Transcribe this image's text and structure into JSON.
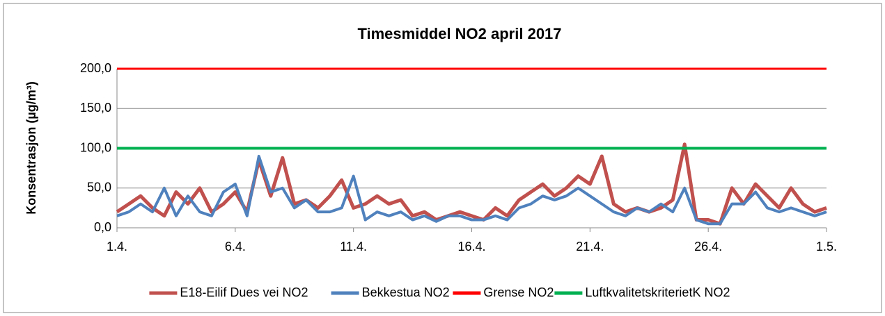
{
  "chart_data": {
    "type": "line",
    "title": "Timesmiddel NO2 april 2017",
    "y_label": "Konsentrasjon (µg/m³)",
    "xlim": [
      1,
      31
    ],
    "xticks": [
      {
        "value": 1,
        "label": "1.4."
      },
      {
        "value": 6,
        "label": "6.4."
      },
      {
        "value": 11,
        "label": "11.4."
      },
      {
        "value": 16,
        "label": "16.4."
      },
      {
        "value": 21,
        "label": "21.4."
      },
      {
        "value": 26,
        "label": "26.4."
      },
      {
        "value": 31,
        "label": "1.5."
      }
    ],
    "ylim": [
      0,
      200
    ],
    "yticks": [
      {
        "value": 0,
        "label": "0,0"
      },
      {
        "value": 50,
        "label": "50,0"
      },
      {
        "value": 100,
        "label": "100,0"
      },
      {
        "value": 150,
        "label": "150,0"
      },
      {
        "value": 200,
        "label": "200,0"
      }
    ],
    "grid": true,
    "legend": "bottom",
    "x": [
      1,
      1.5,
      2,
      2.5,
      3,
      3.5,
      4,
      4.5,
      5,
      5.5,
      6,
      6.5,
      7,
      7.5,
      8,
      8.5,
      9,
      9.5,
      10,
      10.5,
      11,
      11.5,
      12,
      12.5,
      13,
      13.5,
      14,
      14.5,
      15,
      15.5,
      16,
      16.5,
      17,
      17.5,
      18,
      18.5,
      19,
      19.5,
      20,
      20.5,
      21,
      21.5,
      22,
      22.5,
      23,
      23.5,
      24,
      24.5,
      25,
      25.5,
      26,
      26.5,
      27,
      27.5,
      28,
      28.5,
      29,
      29.5,
      30,
      30.5,
      31
    ],
    "series": [
      {
        "name": "E18-Eilif Dues vei NO2",
        "color": "#c0504d",
        "width": 5,
        "values": [
          20,
          30,
          40,
          25,
          15,
          45,
          30,
          50,
          20,
          30,
          45,
          20,
          85,
          40,
          88,
          30,
          35,
          25,
          40,
          60,
          25,
          30,
          40,
          30,
          35,
          15,
          20,
          10,
          15,
          20,
          15,
          10,
          25,
          15,
          35,
          45,
          55,
          40,
          50,
          65,
          55,
          90,
          30,
          20,
          25,
          20,
          25,
          35,
          105,
          10,
          10,
          5,
          50,
          30,
          55,
          40,
          25,
          50,
          30,
          20,
          25
        ]
      },
      {
        "name": "Bekkestua NO2",
        "color": "#4f81bd",
        "width": 4,
        "values": [
          15,
          20,
          30,
          20,
          50,
          15,
          40,
          20,
          15,
          45,
          55,
          15,
          90,
          45,
          50,
          25,
          35,
          20,
          20,
          25,
          65,
          10,
          20,
          15,
          20,
          10,
          15,
          8,
          15,
          15,
          10,
          10,
          15,
          10,
          25,
          30,
          40,
          35,
          40,
          50,
          40,
          30,
          20,
          15,
          25,
          20,
          30,
          20,
          50,
          10,
          5,
          5,
          30,
          30,
          45,
          25,
          20,
          25,
          20,
          15,
          20
        ]
      },
      {
        "name": "Grense NO2",
        "color": "#ff0000",
        "width": 3,
        "x": [
          1,
          31
        ],
        "values": [
          200,
          200
        ]
      },
      {
        "name": "LuftkvalitetskriterietK NO2",
        "color": "#00b050",
        "width": 4,
        "x": [
          1,
          31
        ],
        "values": [
          100,
          100
        ]
      }
    ]
  }
}
